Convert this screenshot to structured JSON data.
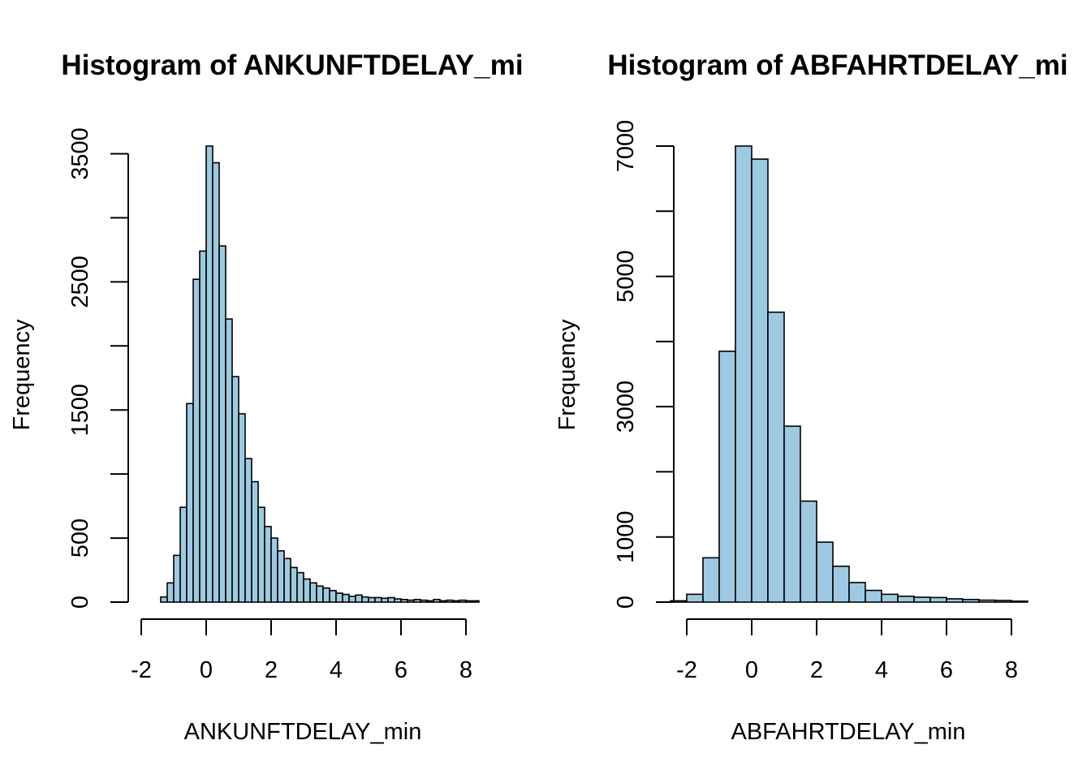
{
  "chart_data": [
    {
      "type": "bar",
      "title": "Histogram of ANKUNFTDELAY_mi",
      "xlabel": "ANKUNFTDELAY_min",
      "ylabel": "Frequency",
      "bar_color": "#9ecae1",
      "bin_width": 0.2,
      "x_ticks": [
        -2,
        0,
        2,
        4,
        6,
        8
      ],
      "x_tick_labels": [
        "-2",
        "0",
        "2",
        "4",
        "6",
        "8"
      ],
      "y_ticks": [
        0,
        500,
        1000,
        1500,
        2000,
        2500,
        3000,
        3500
      ],
      "y_tick_labels": [
        "0",
        "500",
        "",
        "1500",
        "",
        "2500",
        "",
        "3500"
      ],
      "xlim": [
        -2,
        8.4
      ],
      "ylim": [
        0,
        3560
      ],
      "bins_left": [
        -1.4,
        -1.2,
        -1.0,
        -0.8,
        -0.6,
        -0.4,
        -0.2,
        0.0,
        0.2,
        0.4,
        0.6,
        0.8,
        1.0,
        1.2,
        1.4,
        1.6,
        1.8,
        2.0,
        2.2,
        2.4,
        2.6,
        2.8,
        3.0,
        3.2,
        3.4,
        3.6,
        3.8,
        4.0,
        4.2,
        4.4,
        4.6,
        4.8,
        5.0,
        5.2,
        5.4,
        5.6,
        5.8,
        6.0,
        6.2,
        6.4,
        6.6,
        6.8,
        7.0,
        7.2,
        7.4,
        7.6,
        7.8,
        8.0,
        8.2
      ],
      "values": [
        40,
        150,
        365,
        740,
        1550,
        2520,
        2740,
        3560,
        3430,
        2780,
        2210,
        1760,
        1470,
        1120,
        940,
        740,
        590,
        500,
        400,
        340,
        270,
        230,
        180,
        150,
        125,
        110,
        90,
        70,
        60,
        45,
        55,
        40,
        35,
        35,
        30,
        35,
        25,
        20,
        15,
        20,
        15,
        10,
        20,
        10,
        15,
        10,
        15,
        10,
        10
      ]
    },
    {
      "type": "bar",
      "title": "Histogram of ABFAHRTDELAY_mi",
      "xlabel": "ABFAHRTDELAY_min",
      "ylabel": "Frequency",
      "bar_color": "#9ecae1",
      "bin_width": 0.5,
      "x_ticks": [
        -2,
        0,
        2,
        4,
        6,
        8
      ],
      "x_tick_labels": [
        "-2",
        "0",
        "2",
        "4",
        "6",
        "8"
      ],
      "y_ticks": [
        0,
        1000,
        2000,
        3000,
        4000,
        5000,
        6000,
        7000
      ],
      "y_tick_labels": [
        "0",
        "1000",
        "",
        "3000",
        "",
        "5000",
        "",
        "7000"
      ],
      "xlim": [
        -2.5,
        8.5
      ],
      "ylim": [
        0,
        7000
      ],
      "bins_left": [
        -2.5,
        -2.0,
        -1.5,
        -1.0,
        -0.5,
        0.0,
        0.5,
        1.0,
        1.5,
        2.0,
        2.5,
        3.0,
        3.5,
        4.0,
        4.5,
        5.0,
        5.5,
        6.0,
        6.5,
        7.0,
        7.5,
        8.0
      ],
      "values": [
        20,
        120,
        680,
        3850,
        7000,
        6800,
        4450,
        2700,
        1550,
        920,
        550,
        300,
        180,
        120,
        90,
        75,
        70,
        50,
        40,
        30,
        25,
        15
      ]
    }
  ]
}
